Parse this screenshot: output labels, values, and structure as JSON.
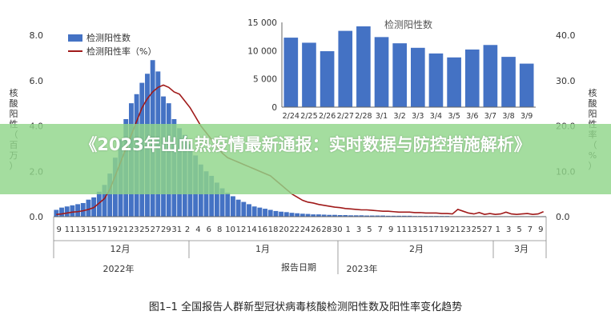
{
  "banner": {
    "title": "《2023年出血热疫情最新通报：实时数据与防控措施解析》"
  },
  "caption": "图1–1  全国报告人群新型冠状病毒核酸检测阳性数及阳性率变化趋势",
  "colors": {
    "bar": "#4472c4",
    "line": "#a01a1a",
    "axis": "#666666"
  },
  "chart_data": [
    {
      "type": "bar+line",
      "ylabel_left": "核酸阳性（百万）",
      "ylabel_right": "核酸阳性率（%）",
      "xlabel": "报告日期",
      "ylim_left": [
        0,
        8
      ],
      "ylim_right": [
        0,
        40
      ],
      "yticks_left": [
        "0.0",
        "2.0",
        "4.0",
        "6.0",
        "8.0"
      ],
      "yticks_right": [
        "0.0",
        "10.0",
        "20.0",
        "30.0",
        "40.0"
      ],
      "legend": [
        "检测阳性数",
        "检测阳性率（%）"
      ],
      "legend_position": "top-left",
      "xtick_labels": [
        "9",
        "11",
        "13",
        "15",
        "17",
        "19",
        "21",
        "23",
        "25",
        "27",
        "29",
        "31",
        "2",
        "4",
        "6",
        "8",
        "10",
        "12",
        "14",
        "16",
        "18",
        "20",
        "22",
        "24",
        "26",
        "28",
        "30",
        "1",
        "3",
        "5",
        "7",
        "9",
        "11",
        "13",
        "15",
        "17",
        "19",
        "21",
        "23",
        "25",
        "27",
        "1",
        "3",
        "5",
        "7",
        "9"
      ],
      "months": [
        "12月",
        "1月",
        "2月",
        "3月"
      ],
      "years": [
        "2022年",
        "2023年"
      ],
      "series": [
        {
          "name": "检测阳性数",
          "values": [
            0.3,
            0.4,
            0.45,
            0.5,
            0.55,
            0.6,
            0.75,
            0.85,
            1.1,
            1.4,
            1.9,
            2.6,
            3.4,
            4.3,
            5.0,
            5.4,
            5.9,
            6.3,
            6.9,
            6.4,
            5.3,
            5.0,
            4.3,
            3.9,
            3.6,
            3.2,
            2.7,
            2.3,
            2.0,
            1.8,
            1.5,
            1.25,
            1.05,
            0.9,
            0.75,
            0.65,
            0.55,
            0.45,
            0.4,
            0.35,
            0.3,
            0.25,
            0.22,
            0.2,
            0.17,
            0.15,
            0.13,
            0.12,
            0.1,
            0.1,
            0.09,
            0.08,
            0.08,
            0.07,
            0.07,
            0.06,
            0.06,
            0.06,
            0.05,
            0.05,
            0.05,
            0.05,
            0.04,
            0.04,
            0.04,
            0.04,
            0.04,
            0.03,
            0.03,
            0.03,
            0.03,
            0.03,
            0.03,
            0.03,
            0.02,
            0.02,
            0.02,
            0.02,
            0.02,
            0.02,
            0.02,
            0.02,
            0.02,
            0.02,
            0.02,
            0.02,
            0.02,
            0.02,
            0.02,
            0.02,
            0.02,
            0.02
          ]
        },
        {
          "name": "检测阳性率（%）",
          "values": [
            0.5,
            0.6,
            0.8,
            1.0,
            1.1,
            1.3,
            1.6,
            2.0,
            3.0,
            4.0,
            6.0,
            9.0,
            12.0,
            15.0,
            18.0,
            21.0,
            24.0,
            26.0,
            27.5,
            28.5,
            29.0,
            28.5,
            27.5,
            27.0,
            25.5,
            24.0,
            22.0,
            20.0,
            18.5,
            17.0,
            15.5,
            14.0,
            13.0,
            12.5,
            12.0,
            11.5,
            11.0,
            10.5,
            10.0,
            9.5,
            9.0,
            8.0,
            7.0,
            6.0,
            5.0,
            4.3,
            3.6,
            3.2,
            3.0,
            2.7,
            2.5,
            2.3,
            2.1,
            2.0,
            1.8,
            1.7,
            1.6,
            1.5,
            1.5,
            1.4,
            1.3,
            1.2,
            1.2,
            1.1,
            1.0,
            1.0,
            1.0,
            0.9,
            0.9,
            0.8,
            0.8,
            0.8,
            0.7,
            0.7,
            0.6,
            1.6,
            1.2,
            0.8,
            0.6,
            0.9,
            0.5,
            0.7,
            0.5,
            0.6,
            1.0,
            0.6,
            0.5,
            0.6,
            0.7,
            0.5,
            0.6,
            1.1
          ]
        }
      ]
    },
    {
      "type": "bar",
      "title": "检测阳性数",
      "categories": [
        "2/24",
        "2/25",
        "2/26",
        "2/27",
        "2/28",
        "3/1",
        "3/2",
        "3/3",
        "3/4",
        "3/5",
        "3/6",
        "3/7",
        "3/8",
        "3/9"
      ],
      "values": [
        12300,
        11400,
        9900,
        13500,
        14300,
        12400,
        11300,
        10500,
        9500,
        8800,
        10200,
        11000,
        8900,
        7700
      ],
      "ylim": [
        0,
        15000
      ],
      "yticks": [
        "0",
        "5 000",
        "10 000",
        "15 000"
      ]
    }
  ]
}
